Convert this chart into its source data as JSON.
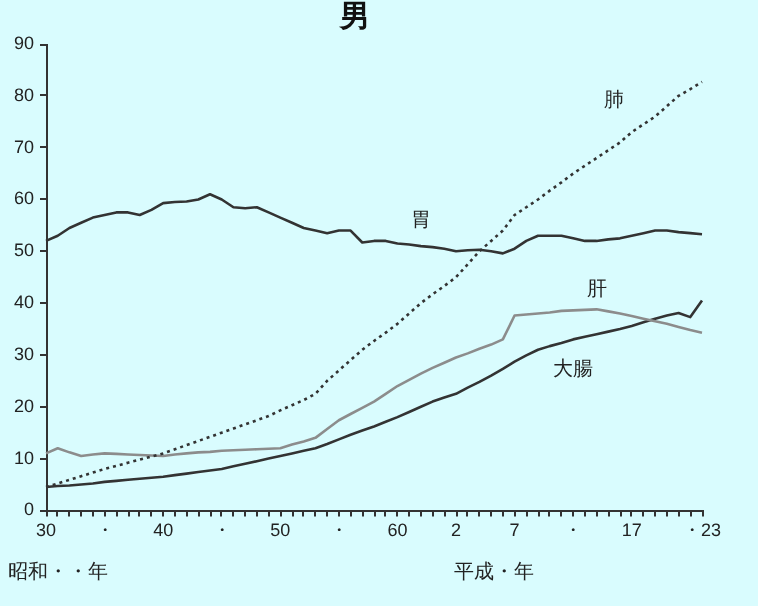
{
  "chart_data": {
    "type": "line",
    "title": "男",
    "xlabel": "昭和・・年",
    "annotations": [
      "平成・年"
    ],
    "categories": [
      "30",
      null,
      null,
      null,
      null,
      "・",
      null,
      null,
      null,
      null,
      "40",
      null,
      null,
      null,
      null,
      "・",
      null,
      null,
      null,
      null,
      "50",
      null,
      null,
      null,
      null,
      "・",
      null,
      null,
      null,
      null,
      "60",
      null,
      null,
      null,
      null,
      "2",
      null,
      null,
      null,
      null,
      "7",
      null,
      null,
      null,
      null,
      "・",
      null,
      null,
      null,
      null,
      "17",
      null,
      null,
      null,
      null,
      null,
      "・23"
    ],
    "ylim": [
      0,
      90
    ],
    "yticks": [
      0,
      10,
      20,
      30,
      40,
      50,
      60,
      70,
      80,
      90
    ],
    "grid": false,
    "legend": false,
    "marker": "none",
    "series": [
      {
        "name": "胃",
        "color": "#333333",
        "line_style": "solid",
        "values": [
          52,
          53,
          54.5,
          55.5,
          56.5,
          57,
          57.5,
          57.5,
          57,
          58,
          59.3,
          59.5,
          59.6,
          60,
          61,
          60,
          58.5,
          58.3,
          58.5,
          57.5,
          56.5,
          55.5,
          54.5,
          54,
          53.5,
          54,
          54,
          51.7,
          52,
          52,
          51.5,
          51.3,
          51,
          50.8,
          50.5,
          50,
          50.2,
          50.3,
          50,
          49.6,
          50.5,
          52,
          53,
          53,
          53,
          52.5,
          52,
          52,
          52.3,
          52.5,
          53,
          53.5,
          54,
          54,
          53.7,
          53.5,
          53.3
        ]
      },
      {
        "name": "肺",
        "color": "#333333",
        "line_style": "dotted",
        "values": [
          4.5,
          5.2,
          5.9,
          6.6,
          7.3,
          8,
          8.6,
          9.2,
          9.8,
          10.4,
          11,
          11.8,
          12.6,
          13.4,
          14.2,
          15,
          15.8,
          16.6,
          17.4,
          18.2,
          19.3,
          20.3,
          21.3,
          22.5,
          25,
          27,
          29,
          31,
          32.7,
          34.3,
          36,
          38,
          40,
          41.7,
          43.3,
          45,
          47.5,
          50,
          52,
          54,
          57,
          58.5,
          60,
          61.7,
          63.3,
          65,
          66.5,
          68,
          69.5,
          71,
          73,
          74.5,
          76,
          78,
          80,
          81.3,
          82.7
        ]
      },
      {
        "name": "肝",
        "color": "#8c8c8c",
        "line_style": "solid",
        "values": [
          11,
          12,
          11.2,
          10.5,
          10.8,
          11,
          10.9,
          10.8,
          10.7,
          10.6,
          10.5,
          10.8,
          11,
          11.2,
          11.3,
          11.5,
          11.6,
          11.7,
          11.8,
          11.9,
          12,
          12.7,
          13.3,
          14,
          15.7,
          17.4,
          18.6,
          19.8,
          21,
          22.5,
          24,
          25.2,
          26.4,
          27.5,
          28.5,
          29.5,
          30.3,
          31.2,
          32,
          33,
          37.6,
          37.8,
          38,
          38.2,
          38.5,
          38.6,
          38.7,
          38.8,
          38.4,
          38,
          37.5,
          37,
          36.5,
          36,
          35.4,
          34.8,
          34.3
        ]
      },
      {
        "name": "大腸",
        "color": "#333333",
        "line_style": "solid",
        "values": [
          4.5,
          4.7,
          4.8,
          5,
          5.2,
          5.5,
          5.7,
          5.9,
          6.1,
          6.3,
          6.5,
          6.8,
          7.1,
          7.4,
          7.7,
          8,
          8.5,
          9,
          9.5,
          10,
          10.5,
          11,
          11.5,
          12,
          12.8,
          13.7,
          14.6,
          15.4,
          16.2,
          17.1,
          18,
          19,
          20,
          21,
          21.8,
          22.5,
          23.7,
          24.8,
          26,
          27.3,
          28.7,
          29.9,
          31,
          31.7,
          32.3,
          33,
          33.5,
          34,
          34.5,
          35,
          35.6,
          36.3,
          37,
          37.6,
          38.1,
          37.3,
          40.5
        ]
      }
    ]
  }
}
